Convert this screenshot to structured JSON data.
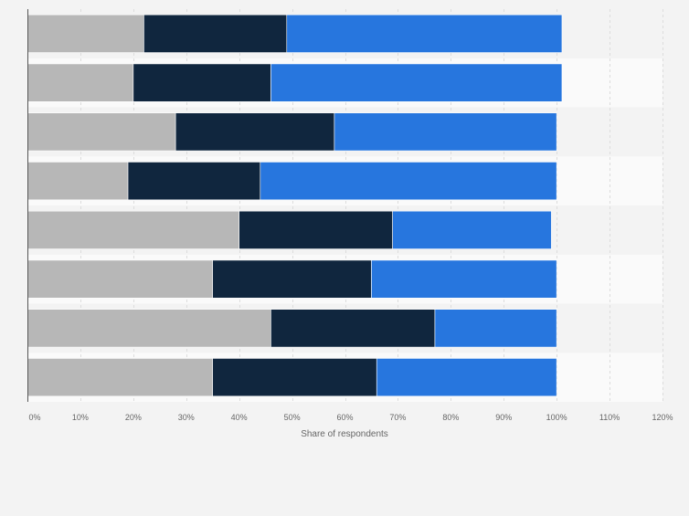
{
  "chart_data": {
    "type": "bar",
    "orientation": "horizontal",
    "stacked": true,
    "categories": [
      "",
      "",
      "",
      "",
      "",
      "",
      "",
      ""
    ],
    "series": [
      {
        "color": "#b7b7b7",
        "values": [
          22,
          20,
          28,
          19,
          40,
          35,
          46,
          35
        ]
      },
      {
        "color": "#10263e",
        "values": [
          27,
          26,
          30,
          25,
          29,
          30,
          31,
          31
        ]
      },
      {
        "color": "#2776de",
        "values": [
          52,
          55,
          42,
          56,
          30,
          35,
          23,
          34
        ]
      }
    ],
    "xlim": [
      0,
      120
    ],
    "xticks": [
      "0%",
      "10%",
      "20%",
      "30%",
      "40%",
      "50%",
      "60%",
      "70%",
      "80%",
      "90%",
      "100%",
      "110%",
      "120%"
    ],
    "xlabel": "Share of respondents",
    "ylabel": "",
    "title": "",
    "grid": true,
    "legend": "none"
  }
}
